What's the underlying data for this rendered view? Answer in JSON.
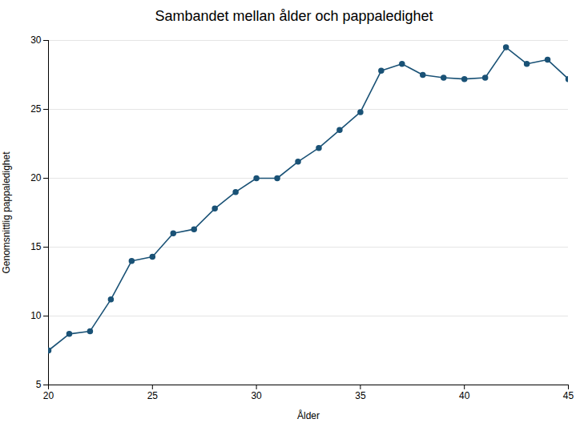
{
  "chart_data": {
    "type": "line",
    "title": "Sambandet mellan ålder och pappaledighet",
    "xlabel": "Ålder",
    "ylabel": "Genomsnittlig pappaledighet",
    "x": [
      20,
      21,
      22,
      23,
      24,
      25,
      26,
      27,
      28,
      29,
      30,
      31,
      32,
      33,
      34,
      35,
      36,
      37,
      38,
      39,
      40,
      41,
      42,
      43,
      44,
      45
    ],
    "values": [
      7.5,
      8.7,
      8.9,
      11.2,
      14.0,
      14.3,
      16.0,
      16.3,
      17.8,
      19.0,
      20.0,
      20.0,
      21.2,
      22.2,
      23.5,
      24.8,
      27.8,
      28.3,
      27.5,
      27.3,
      27.2,
      27.3,
      29.5,
      28.3,
      28.6,
      27.2
    ],
    "color": "#1a5276",
    "marker": "circle",
    "xlim": [
      20,
      45
    ],
    "ylim": [
      5,
      30
    ],
    "xticks": [
      20,
      25,
      30,
      35,
      40,
      45
    ],
    "yticks": [
      5,
      10,
      15,
      20,
      25,
      30
    ],
    "grid": true
  }
}
